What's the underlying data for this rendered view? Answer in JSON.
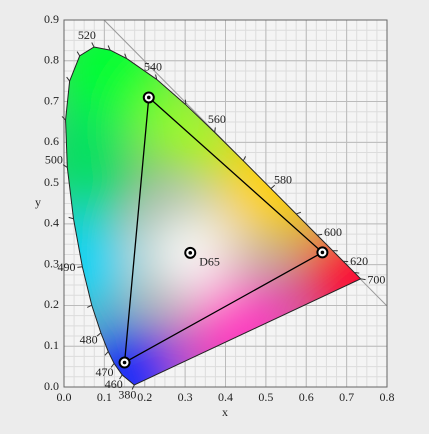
{
  "chart_data": {
    "type": "chromaticity",
    "x_label": "x",
    "y_label": "y",
    "xlim": [
      0,
      0.8
    ],
    "ylim": [
      0,
      0.9
    ],
    "xticks": [
      {
        "value": 0,
        "label": "0.0"
      },
      {
        "value": 0.1,
        "label": "0.1"
      },
      {
        "value": 0.2,
        "label": "0.2"
      },
      {
        "value": 0.3,
        "label": "0.3"
      },
      {
        "value": 0.4,
        "label": "0.4"
      },
      {
        "value": 0.5,
        "label": "0.5"
      },
      {
        "value": 0.6,
        "label": "0.6"
      },
      {
        "value": 0.7,
        "label": "0.7"
      },
      {
        "value": 0.8,
        "label": "0.8"
      }
    ],
    "yticks": [
      {
        "value": 0,
        "label": "0.0"
      },
      {
        "value": 0.1,
        "label": "0.1"
      },
      {
        "value": 0.2,
        "label": "0.2"
      },
      {
        "value": 0.3,
        "label": "0.3"
      },
      {
        "value": 0.4,
        "label": "0.4"
      },
      {
        "value": 0.5,
        "label": "0.5"
      },
      {
        "value": 0.6,
        "label": "0.6"
      },
      {
        "value": 0.7,
        "label": "0.7"
      },
      {
        "value": 0.8,
        "label": "0.8"
      },
      {
        "value": 0.9,
        "label": "0.9"
      }
    ],
    "grid": true,
    "locus": {
      "labels": [
        "380",
        "460",
        "470",
        null,
        "480",
        null,
        "490",
        null,
        "500",
        null,
        null,
        null,
        "520",
        null,
        null,
        "540",
        null,
        "560",
        null,
        "580",
        null,
        "600",
        null,
        "620",
        null,
        "700"
      ],
      "x": [
        0.1741,
        0.144,
        0.1241,
        0.1096,
        0.0913,
        0.0687,
        0.0454,
        0.0235,
        0.0082,
        0.0039,
        0.0139,
        0.0389,
        0.0743,
        0.1142,
        0.1547,
        0.2296,
        0.3016,
        0.3731,
        0.4441,
        0.5125,
        0.5752,
        0.627,
        0.6658,
        0.6915,
        0.719,
        0.7347
      ],
      "y": [
        0.005,
        0.0297,
        0.0578,
        0.0868,
        0.1327,
        0.2007,
        0.295,
        0.4127,
        0.5384,
        0.6548,
        0.7502,
        0.812,
        0.8338,
        0.8262,
        0.8059,
        0.7543,
        0.6923,
        0.6245,
        0.5547,
        0.4866,
        0.4242,
        0.3725,
        0.334,
        0.3083,
        0.2809,
        0.2653
      ],
      "label_color": "#1a1aa0"
    },
    "gamut": {
      "x": [
        0.64,
        0.21,
        0.15
      ],
      "y": [
        0.33,
        0.71,
        0.06
      ],
      "color": "#000000"
    },
    "white_point": {
      "label": "D65",
      "x": 0.3127,
      "y": 0.329
    }
  }
}
